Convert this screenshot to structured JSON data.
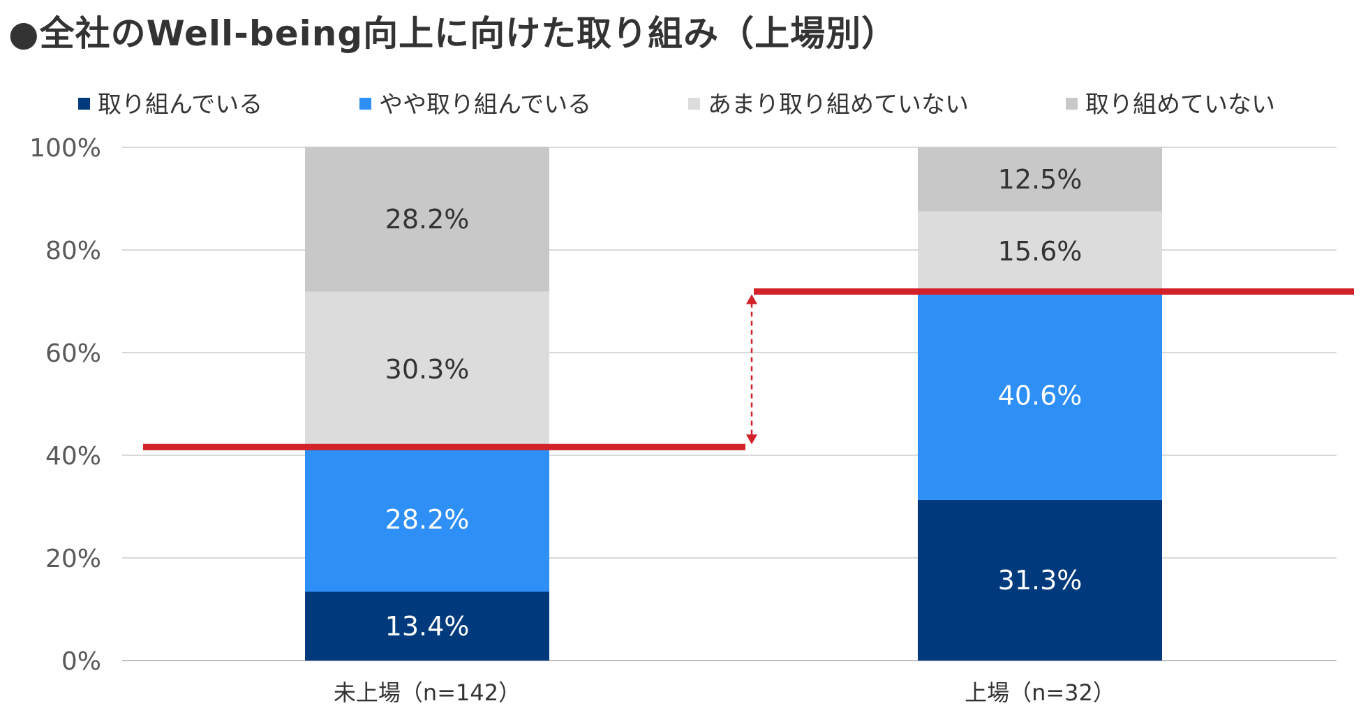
{
  "chart_data": {
    "type": "bar",
    "stacked": true,
    "percent": true,
    "title": "●全社のWell-being向上に向けた取り組み（上場別）",
    "categories": [
      "未上場（n=142）",
      "上場（n=32）"
    ],
    "series": [
      {
        "name": "取り組んでいる",
        "color": "#003a7d",
        "label_color": "#ffffff",
        "values": [
          13.4,
          31.3
        ]
      },
      {
        "name": "やや取り組んでいる",
        "color": "#2e8ff7",
        "label_color": "#ffffff",
        "values": [
          28.2,
          40.6
        ]
      },
      {
        "name": "あまり取り組めていない",
        "color": "#dcdcdd",
        "label_color": "#333333",
        "values": [
          30.3,
          15.6
        ]
      },
      {
        "name": "取り組めていない",
        "color": "#c8c8c8",
        "label_color": "#333333",
        "values": [
          28.2,
          12.5
        ]
      }
    ],
    "data_labels": [
      [
        "13.4%",
        "31.3%"
      ],
      [
        "28.2%",
        "40.6%"
      ],
      [
        "30.3%",
        "15.6%"
      ],
      [
        "28.2%",
        "12.5%"
      ]
    ],
    "ylim": [
      0,
      100
    ],
    "yticks": [
      0,
      20,
      40,
      60,
      80,
      100
    ],
    "ytick_labels": [
      "0%",
      "20%",
      "40%",
      "60%",
      "80%",
      "100%"
    ],
    "grid": true,
    "legend_position": "top",
    "highlight_color": "#d22128",
    "annotations": {
      "reference_lines": [
        41.6,
        71.9
      ],
      "arrow": "double-headed dashed arrow between the two reference lines"
    }
  }
}
